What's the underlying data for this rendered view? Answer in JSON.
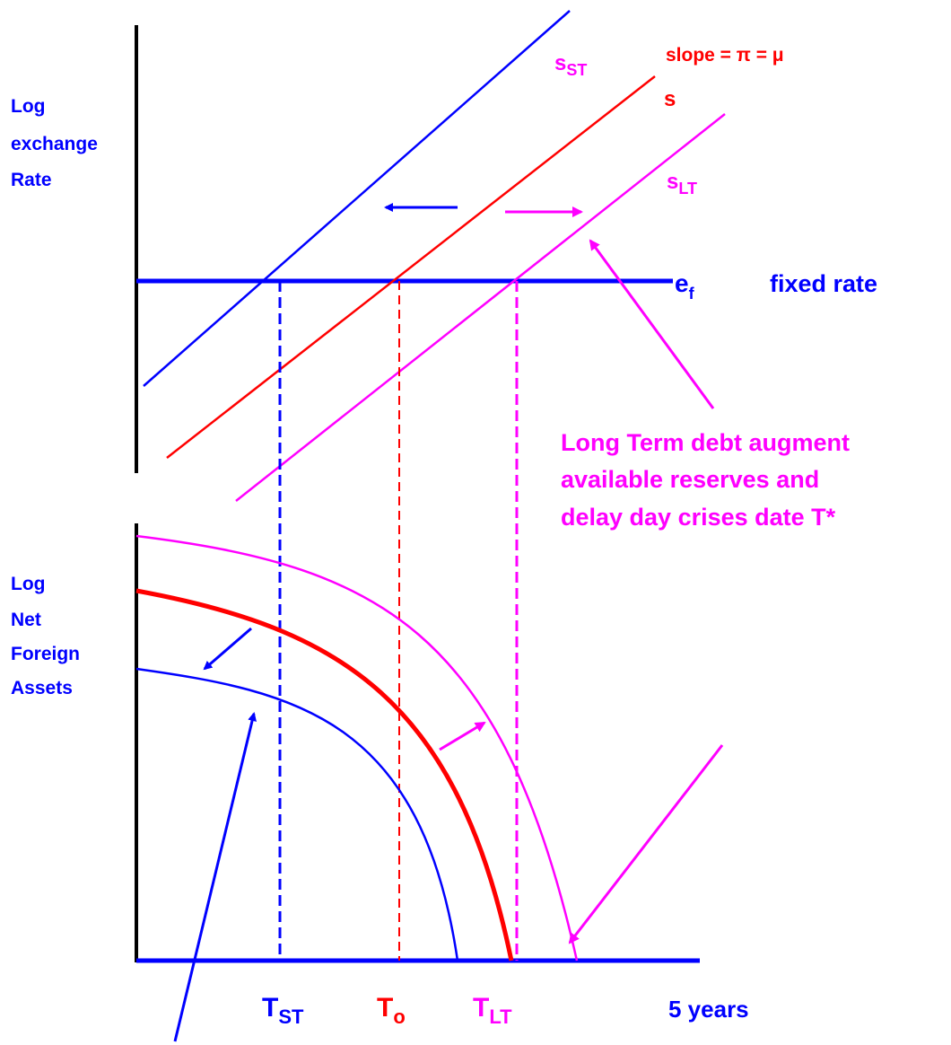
{
  "top_axis_label": [
    "Log",
    "exchange",
    "Rate"
  ],
  "bottom_axis_label": [
    "Log",
    "Net",
    "Foreign",
    "Assets"
  ],
  "lines": {
    "s_st": {
      "base": "s",
      "sub": "ST"
    },
    "s": "s",
    "s_lt": {
      "base": "s",
      "sub": "LT"
    },
    "slope": "slope = π = μ"
  },
  "fixed": {
    "base": "e",
    "sub": "f",
    "label": "fixed rate"
  },
  "annotation": [
    "Long Term debt augment",
    "available reserves and",
    "delay day crises date T*"
  ],
  "x_labels": [
    {
      "base": "T",
      "sub": "ST"
    },
    {
      "base": "T",
      "sub": "o"
    },
    {
      "base": "T",
      "sub": "LT"
    }
  ],
  "x_end": "5 years"
}
